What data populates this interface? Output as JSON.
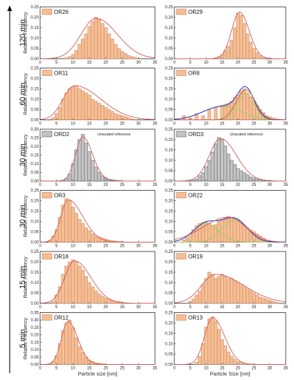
{
  "ylabel": "Relative Frequency",
  "xlabels": [
    "Particle size [nm]",
    "Particle Size [nm]"
  ],
  "row_labels": [
    "120 min",
    "60 min",
    "30 min",
    "30 min",
    "15 min",
    "5 min"
  ],
  "note_text": "Unscaled reference",
  "colors": {
    "orange": "#f6bf93",
    "orange_edge": "#c9876a",
    "gray": "#c4c4c4",
    "gray_edge": "#6a6a6a",
    "fit": "#d9534f",
    "envelope": "#3b4bc8",
    "component": "#9bd45a"
  },
  "chart_data": [
    {
      "type": "bar",
      "name": "OR26",
      "style": "orange",
      "x": [
        8,
        9,
        10,
        11,
        12,
        13,
        14,
        15,
        16,
        17,
        18,
        19,
        20,
        21,
        22,
        23,
        24,
        25,
        26,
        27,
        28,
        29,
        30
      ],
      "values": [
        0.005,
        0.01,
        0.02,
        0.04,
        0.07,
        0.095,
        0.12,
        0.155,
        0.18,
        0.2,
        0.19,
        0.17,
        0.15,
        0.12,
        0.095,
        0.07,
        0.05,
        0.035,
        0.025,
        0.015,
        0.01,
        0.006,
        0.003
      ],
      "fit_peak": 17,
      "fit_height": 0.195,
      "fit_wl": 4.5,
      "fit_wr": 6.5,
      "xlim": [
        0,
        35
      ],
      "ylim": [
        0,
        0.25
      ],
      "yticks": [
        0,
        0.05,
        0.1,
        0.15,
        0.2,
        0.25
      ]
    },
    {
      "type": "bar",
      "name": "OR29",
      "style": "orange",
      "x": [
        13,
        14,
        15,
        16,
        17,
        18,
        19,
        20,
        21,
        22,
        23,
        24,
        25,
        26,
        27,
        28
      ],
      "values": [
        0.005,
        0.01,
        0.02,
        0.04,
        0.06,
        0.09,
        0.15,
        0.22,
        0.21,
        0.17,
        0.12,
        0.08,
        0.05,
        0.03,
        0.015,
        0.005
      ],
      "fit_peak": 20.5,
      "fit_height": 0.225,
      "fit_wl": 2.5,
      "fit_wr": 3.0,
      "xlim": [
        0,
        35
      ],
      "ylim": [
        0,
        0.25
      ],
      "yticks": [
        0,
        0.05,
        0.1,
        0.15,
        0.2,
        0.25
      ]
    },
    {
      "type": "bar",
      "name": "OR11",
      "style": "orange",
      "x": [
        4,
        5,
        6,
        7,
        8,
        9,
        10,
        11,
        12,
        13,
        14,
        15,
        16,
        17,
        18,
        19,
        20,
        21,
        22,
        23,
        24,
        25,
        26,
        27,
        28
      ],
      "values": [
        0.01,
        0.03,
        0.06,
        0.1,
        0.13,
        0.15,
        0.16,
        0.165,
        0.15,
        0.14,
        0.13,
        0.12,
        0.1,
        0.09,
        0.08,
        0.07,
        0.06,
        0.05,
        0.04,
        0.03,
        0.025,
        0.02,
        0.015,
        0.01,
        0.005
      ],
      "fit_peak": 10.5,
      "fit_height": 0.165,
      "fit_wl": 3.5,
      "fit_wr": 8.0,
      "xlim": [
        0,
        35
      ],
      "ylim": [
        0,
        0.25
      ],
      "yticks": [
        0,
        0.05,
        0.1,
        0.15,
        0.2,
        0.25
      ]
    },
    {
      "type": "bar",
      "name": "OR8",
      "style": "orange",
      "x": [
        1,
        3,
        5,
        7,
        9,
        11,
        13,
        15,
        16,
        17,
        18,
        19,
        20,
        21,
        22,
        23,
        24,
        25,
        26,
        27,
        28,
        29,
        30,
        31,
        32,
        33
      ],
      "values": [
        0.005,
        0.02,
        0.01,
        0.03,
        0.02,
        0.05,
        0.06,
        0.07,
        0.075,
        0.08,
        0.09,
        0.11,
        0.12,
        0.14,
        0.15,
        0.13,
        0.11,
        0.09,
        0.07,
        0.05,
        0.035,
        0.02,
        0.015,
        0.01,
        0.005,
        0.003
      ],
      "fit_peak": 22.5,
      "fit_height": 0.145,
      "fit_wl": 3.0,
      "fit_wr": 3.0,
      "envelope": true,
      "components": [
        [
          15,
          0.065,
          6.0
        ],
        [
          22.5,
          0.13,
          2.6
        ]
      ],
      "xlim": [
        0,
        35
      ],
      "ylim": [
        0,
        0.25
      ],
      "yticks": [
        0,
        0.05,
        0.1,
        0.15,
        0.2,
        0.25
      ]
    },
    {
      "type": "bar",
      "name": "ORD2",
      "style": "gray",
      "x": [
        7,
        8,
        9,
        10,
        11,
        12,
        13,
        14,
        15,
        16,
        17,
        18,
        19,
        20,
        21,
        22,
        23,
        24
      ],
      "values": [
        0.005,
        0.015,
        0.04,
        0.1,
        0.18,
        0.24,
        0.27,
        0.22,
        0.17,
        0.12,
        0.08,
        0.05,
        0.03,
        0.02,
        0.01,
        0.008,
        0.005,
        0.003
      ],
      "fit_peak": 13,
      "fit_height": 0.255,
      "fit_wl": 2.2,
      "fit_wr": 3.0,
      "note": true,
      "xlim": [
        0,
        35
      ],
      "ylim": [
        0,
        0.3
      ],
      "yticks": [
        0,
        0.05,
        0.1,
        0.15,
        0.2,
        0.25,
        0.3
      ]
    },
    {
      "type": "bar",
      "name": "ORD3",
      "style": "gray",
      "x": [
        6,
        7,
        8,
        9,
        10,
        11,
        12,
        13,
        14,
        15,
        16,
        17,
        18,
        19,
        20,
        21,
        22,
        23,
        24,
        25,
        26,
        27,
        28,
        29,
        30
      ],
      "values": [
        0.005,
        0.01,
        0.025,
        0.04,
        0.07,
        0.1,
        0.14,
        0.18,
        0.21,
        0.2,
        0.17,
        0.13,
        0.1,
        0.08,
        0.06,
        0.05,
        0.04,
        0.03,
        0.02,
        0.015,
        0.01,
        0.008,
        0.005,
        0.003,
        0.002
      ],
      "fit_peak": 14.5,
      "fit_height": 0.205,
      "fit_wl": 3.5,
      "fit_wr": 5.0,
      "note": true,
      "xlim": [
        0,
        35
      ],
      "ylim": [
        0,
        0.25
      ],
      "yticks": [
        0,
        0.05,
        0.1,
        0.15,
        0.2,
        0.25
      ]
    },
    {
      "type": "bar",
      "name": "OR3",
      "style": "orange",
      "x": [
        3,
        4,
        5,
        6,
        7,
        8,
        9,
        10,
        11,
        12,
        13,
        14,
        15,
        16,
        17,
        18,
        19,
        20,
        21,
        22,
        23,
        24,
        25
      ],
      "values": [
        0.01,
        0.03,
        0.06,
        0.12,
        0.18,
        0.21,
        0.2,
        0.17,
        0.14,
        0.11,
        0.09,
        0.07,
        0.055,
        0.04,
        0.03,
        0.025,
        0.02,
        0.015,
        0.01,
        0.008,
        0.005,
        0.003,
        0.002
      ],
      "fit_peak": 8.5,
      "fit_height": 0.205,
      "fit_wl": 2.2,
      "fit_wr": 4.5,
      "xlim": [
        0,
        35
      ],
      "ylim": [
        0,
        0.25
      ],
      "yticks": [
        0,
        0.05,
        0.1,
        0.15,
        0.2,
        0.25
      ]
    },
    {
      "type": "bar",
      "name": "OR22",
      "style": "orange",
      "x": [
        3,
        4,
        5,
        6,
        7,
        8,
        9,
        10,
        11,
        12,
        13,
        14,
        15,
        16,
        17,
        18,
        19,
        20,
        21,
        22,
        23,
        24,
        25,
        26,
        27,
        28,
        29,
        30
      ],
      "values": [
        0.01,
        0.02,
        0.04,
        0.06,
        0.08,
        0.09,
        0.095,
        0.1,
        0.09,
        0.08,
        0.085,
        0.1,
        0.11,
        0.12,
        0.125,
        0.12,
        0.11,
        0.1,
        0.09,
        0.08,
        0.07,
        0.06,
        0.05,
        0.04,
        0.03,
        0.02,
        0.01,
        0.005
      ],
      "fit_peak": 17,
      "fit_height": 0.12,
      "fit_wl": 8.0,
      "fit_wr": 5.5,
      "envelope": true,
      "components": [
        [
          10,
          0.09,
          4.0
        ],
        [
          19,
          0.11,
          4.0
        ]
      ],
      "xlim": [
        0,
        35
      ],
      "ylim": [
        0,
        0.25
      ],
      "yticks": [
        0,
        0.05,
        0.1,
        0.15,
        0.2,
        0.25
      ]
    },
    {
      "type": "bar",
      "name": "OR18",
      "style": "orange",
      "x": [
        4,
        5,
        6,
        7,
        8,
        9,
        10,
        11,
        12,
        13,
        14,
        15,
        16,
        17,
        18,
        19,
        20,
        21,
        22,
        23,
        24,
        25,
        26
      ],
      "values": [
        0.01,
        0.04,
        0.08,
        0.14,
        0.18,
        0.2,
        0.21,
        0.2,
        0.18,
        0.16,
        0.13,
        0.1,
        0.08,
        0.06,
        0.045,
        0.035,
        0.025,
        0.02,
        0.015,
        0.01,
        0.008,
        0.005,
        0.003
      ],
      "fit_peak": 10.5,
      "fit_height": 0.205,
      "fit_wl": 3.0,
      "fit_wr": 5.0,
      "xlim": [
        0,
        35
      ],
      "ylim": [
        0,
        0.25
      ],
      "yticks": [
        0,
        0.05,
        0.1,
        0.15,
        0.2,
        0.25
      ]
    },
    {
      "type": "bar",
      "name": "OR19",
      "style": "orange",
      "x": [
        5,
        6,
        7,
        8,
        9,
        10,
        11,
        12,
        13,
        14,
        15,
        16,
        17,
        18,
        19,
        20,
        21,
        22,
        23,
        24,
        25,
        26,
        27,
        28,
        29,
        30,
        31,
        32
      ],
      "values": [
        0.01,
        0.02,
        0.04,
        0.06,
        0.09,
        0.12,
        0.15,
        0.14,
        0.12,
        0.13,
        0.14,
        0.13,
        0.12,
        0.12,
        0.11,
        0.1,
        0.09,
        0.08,
        0.07,
        0.06,
        0.05,
        0.04,
        0.03,
        0.025,
        0.02,
        0.015,
        0.01,
        0.005
      ],
      "fit_peak": 13,
      "fit_height": 0.14,
      "fit_wl": 4.5,
      "fit_wr": 9.0,
      "xlim": [
        0,
        35
      ],
      "ylim": [
        0,
        0.25
      ],
      "yticks": [
        0,
        0.05,
        0.1,
        0.15,
        0.2,
        0.25
      ]
    },
    {
      "type": "bar",
      "name": "OR12",
      "style": "orange",
      "x": [
        3,
        4,
        5,
        6,
        7,
        8,
        9,
        10,
        11,
        12,
        13,
        14,
        15,
        16,
        17,
        18,
        19,
        20
      ],
      "values": [
        0.005,
        0.02,
        0.06,
        0.14,
        0.23,
        0.28,
        0.3,
        0.25,
        0.18,
        0.12,
        0.08,
        0.05,
        0.03,
        0.02,
        0.01,
        0.008,
        0.005,
        0.002
      ],
      "fit_peak": 8.5,
      "fit_height": 0.29,
      "fit_wl": 2.0,
      "fit_wr": 3.0,
      "xlim": [
        0,
        35
      ],
      "ylim": [
        0,
        0.35
      ],
      "yticks": [
        0,
        0.05,
        0.1,
        0.15,
        0.2,
        0.25,
        0.3,
        0.35
      ]
    },
    {
      "type": "bar",
      "name": "OR13",
      "style": "orange",
      "x": [
        7,
        8,
        9,
        10,
        11,
        12,
        13,
        14,
        15,
        16,
        17,
        18,
        19,
        20,
        21,
        22,
        23,
        24
      ],
      "values": [
        0.01,
        0.04,
        0.1,
        0.18,
        0.22,
        0.23,
        0.21,
        0.17,
        0.12,
        0.09,
        0.06,
        0.04,
        0.025,
        0.015,
        0.01,
        0.006,
        0.003,
        0.002
      ],
      "fit_peak": 12,
      "fit_height": 0.225,
      "fit_wl": 2.5,
      "fit_wr": 3.8,
      "xlim": [
        0,
        35
      ],
      "ylim": [
        0,
        0.25
      ],
      "yticks": [
        0,
        0.05,
        0.1,
        0.15,
        0.2,
        0.25
      ]
    }
  ]
}
